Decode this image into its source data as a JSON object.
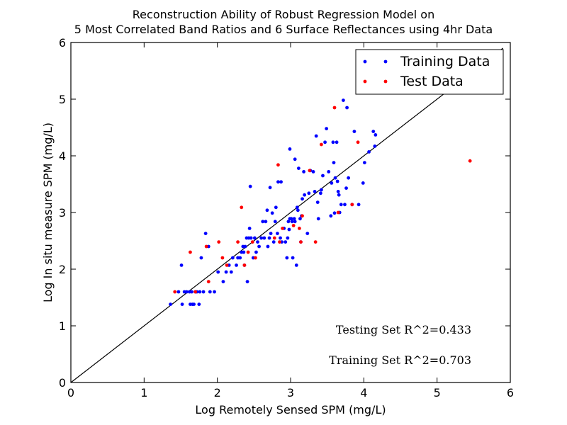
{
  "chart_data": {
    "type": "scatter",
    "title_lines": [
      "Reconstruction Ability of Robust Regression Model on",
      "5 Most Correlated Band Ratios and 6 Surface Reflectances using 4hr Data"
    ],
    "xlabel": "Log Remotely Sensed SPM (mg/L)",
    "ylabel": "Log In situ measure SPM (mg/L)",
    "xlim": [
      0,
      6
    ],
    "ylim": [
      0,
      6
    ],
    "xticks": [
      0,
      1,
      2,
      3,
      4,
      5,
      6
    ],
    "yticks": [
      0,
      1,
      2,
      3,
      4,
      5,
      6
    ],
    "legend_position": "top-right",
    "reference_line": [
      [
        0,
        0
      ],
      [
        5.9,
        5.9
      ]
    ],
    "annotations": [
      "Testing Set R^2=0.433",
      "Training Set R^2=0.703"
    ],
    "series": [
      {
        "name": "Training Data",
        "color": "#0000ff",
        "points": [
          [
            1.36,
            1.38
          ],
          [
            1.47,
            1.6
          ],
          [
            1.52,
            1.38
          ],
          [
            1.51,
            2.07
          ],
          [
            1.55,
            1.6
          ],
          [
            1.58,
            1.6
          ],
          [
            1.62,
            1.6
          ],
          [
            1.63,
            1.38
          ],
          [
            1.65,
            1.6
          ],
          [
            1.66,
            1.38
          ],
          [
            1.68,
            1.38
          ],
          [
            1.7,
            1.6
          ],
          [
            1.72,
            1.6
          ],
          [
            1.75,
            1.38
          ],
          [
            1.76,
            1.6
          ],
          [
            1.78,
            2.2
          ],
          [
            1.81,
            1.6
          ],
          [
            1.84,
            2.63
          ],
          [
            1.9,
            1.6
          ],
          [
            1.88,
            2.4
          ],
          [
            1.96,
            1.6
          ],
          [
            2.01,
            1.95
          ],
          [
            2.08,
            1.78
          ],
          [
            2.12,
            1.95
          ],
          [
            2.16,
            2.07
          ],
          [
            2.19,
            1.95
          ],
          [
            2.21,
            2.2
          ],
          [
            2.26,
            2.07
          ],
          [
            2.28,
            2.2
          ],
          [
            2.31,
            2.2
          ],
          [
            2.33,
            2.3
          ],
          [
            2.35,
            2.4
          ],
          [
            2.36,
            2.3
          ],
          [
            2.38,
            2.4
          ],
          [
            2.37,
            2.07
          ],
          [
            2.4,
            2.55
          ],
          [
            2.41,
            1.78
          ],
          [
            2.43,
            2.55
          ],
          [
            2.44,
            2.72
          ],
          [
            2.46,
            2.55
          ],
          [
            2.45,
            3.46
          ],
          [
            2.49,
            2.2
          ],
          [
            2.51,
            2.55
          ],
          [
            2.53,
            2.3
          ],
          [
            2.55,
            2.48
          ],
          [
            2.57,
            2.4
          ],
          [
            2.6,
            2.55
          ],
          [
            2.62,
            2.84
          ],
          [
            2.64,
            2.55
          ],
          [
            2.66,
            2.84
          ],
          [
            2.68,
            3.04
          ],
          [
            2.69,
            2.4
          ],
          [
            2.71,
            2.55
          ],
          [
            2.73,
            2.63
          ],
          [
            2.72,
            3.44
          ],
          [
            2.75,
            2.99
          ],
          [
            2.77,
            2.48
          ],
          [
            2.79,
            2.84
          ],
          [
            2.8,
            3.09
          ],
          [
            2.82,
            2.63
          ],
          [
            2.83,
            3.54
          ],
          [
            2.86,
            2.55
          ],
          [
            2.87,
            3.54
          ],
          [
            2.88,
            2.48
          ],
          [
            2.91,
            2.72
          ],
          [
            2.93,
            2.48
          ],
          [
            2.95,
            2.2
          ],
          [
            2.96,
            2.55
          ],
          [
            2.97,
            2.84
          ],
          [
            2.99,
            2.89
          ],
          [
            2.98,
            2.7
          ],
          [
            3.01,
            2.89
          ],
          [
            3.02,
            2.84
          ],
          [
            3.03,
            2.2
          ],
          [
            3.05,
            2.89
          ],
          [
            3.06,
            2.84
          ],
          [
            3.08,
            2.07
          ],
          [
            3.09,
            3.09
          ],
          [
            3.1,
            3.04
          ],
          [
            3.11,
            3.78
          ],
          [
            3.13,
            2.89
          ],
          [
            3.14,
            2.48
          ],
          [
            3.15,
            2.94
          ],
          [
            3.16,
            3.24
          ],
          [
            3.18,
            3.72
          ],
          [
            3.19,
            3.31
          ],
          [
            3.23,
            2.63
          ],
          [
            3.25,
            3.34
          ],
          [
            3.27,
            3.74
          ],
          [
            3.31,
            3.72
          ],
          [
            3.33,
            3.37
          ],
          [
            3.35,
            4.35
          ],
          [
            3.37,
            3.18
          ],
          [
            3.38,
            2.89
          ],
          [
            3.41,
            3.34
          ],
          [
            3.42,
            3.4
          ],
          [
            3.44,
            3.65
          ],
          [
            3.47,
            4.24
          ],
          [
            3.49,
            4.48
          ],
          [
            3.52,
            3.72
          ],
          [
            3.55,
            2.94
          ],
          [
            3.56,
            3.52
          ],
          [
            3.58,
            4.24
          ],
          [
            3.59,
            3.88
          ],
          [
            3.6,
            2.99
          ],
          [
            3.61,
            3.61
          ],
          [
            3.63,
            4.24
          ],
          [
            3.64,
            3.55
          ],
          [
            3.65,
            3.37
          ],
          [
            3.66,
            3.31
          ],
          [
            3.67,
            3.0
          ],
          [
            3.69,
            3.14
          ],
          [
            3.72,
            4.98
          ],
          [
            3.74,
            3.14
          ],
          [
            3.76,
            3.43
          ],
          [
            3.77,
            4.85
          ],
          [
            3.79,
            3.61
          ],
          [
            3.84,
            3.14
          ],
          [
            3.87,
            4.43
          ],
          [
            3.93,
            3.14
          ],
          [
            3.99,
            3.52
          ],
          [
            4.01,
            3.88
          ],
          [
            4.07,
            4.07
          ],
          [
            4.13,
            4.43
          ],
          [
            4.15,
            4.17
          ],
          [
            4.16,
            4.37
          ],
          [
            2.99,
            4.12
          ],
          [
            3.06,
            3.94
          ]
        ]
      },
      {
        "name": "Test Data",
        "color": "#ff0000",
        "points": [
          [
            1.42,
            1.6
          ],
          [
            1.63,
            2.3
          ],
          [
            1.7,
            1.6
          ],
          [
            1.85,
            2.4
          ],
          [
            1.88,
            1.78
          ],
          [
            2.02,
            2.48
          ],
          [
            2.07,
            2.2
          ],
          [
            2.13,
            2.07
          ],
          [
            2.28,
            2.48
          ],
          [
            2.33,
            3.09
          ],
          [
            2.37,
            2.07
          ],
          [
            2.42,
            2.3
          ],
          [
            2.48,
            2.48
          ],
          [
            2.52,
            2.2
          ],
          [
            2.78,
            2.55
          ],
          [
            2.83,
            3.84
          ],
          [
            2.85,
            2.48
          ],
          [
            2.89,
            2.72
          ],
          [
            3.04,
            2.77
          ],
          [
            3.12,
            2.72
          ],
          [
            3.14,
            2.48
          ],
          [
            3.16,
            2.94
          ],
          [
            3.26,
            3.74
          ],
          [
            3.34,
            2.48
          ],
          [
            3.42,
            4.2
          ],
          [
            3.6,
            4.85
          ],
          [
            3.65,
            3.0
          ],
          [
            3.84,
            3.14
          ],
          [
            3.92,
            4.24
          ],
          [
            5.45,
            3.91
          ]
        ]
      }
    ]
  }
}
